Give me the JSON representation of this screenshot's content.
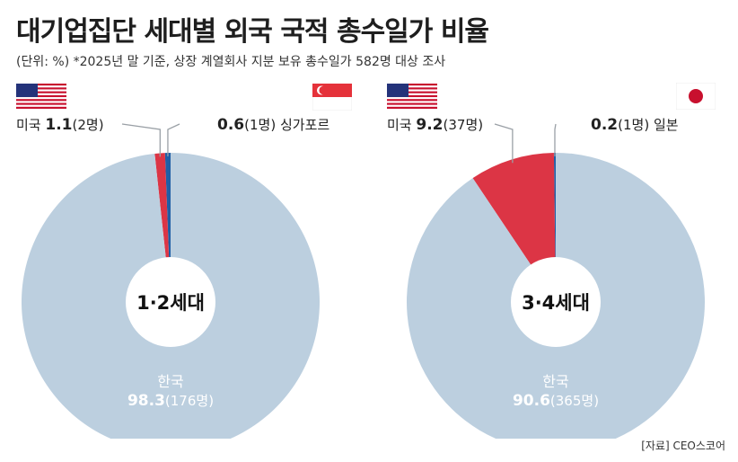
{
  "title": "대기업집단 세대별 외국 국적 총수일가 비율",
  "subtitle": "(단위: %) *2025년 말 기준, 상장 계열회사 지분 보유 총수일가 582명 대상 조사",
  "source": "[자료] CEO스코어",
  "colors": {
    "korea": "#bccfdf",
    "usa": "#dc3545",
    "other": "#1f5fa6",
    "leader_line": "#9aa0a6"
  },
  "chart_data": [
    {
      "type": "pie",
      "center_label": "1·2세대",
      "slices": [
        {
          "name": "한국",
          "value": 98.3,
          "count_label": "(176명)",
          "color": "#bccfdf"
        },
        {
          "name": "미국",
          "value": 1.1,
          "count_label": "(2명)",
          "color": "#dc3545"
        },
        {
          "name": "싱가포르",
          "value": 0.6,
          "count_label": "(1명)",
          "color": "#1f5fa6"
        }
      ],
      "flags": [
        "usa-flag",
        "singapore-flag"
      ]
    },
    {
      "type": "pie",
      "center_label": "3·4세대",
      "slices": [
        {
          "name": "한국",
          "value": 90.6,
          "count_label": "(365명)",
          "color": "#bccfdf"
        },
        {
          "name": "미국",
          "value": 9.2,
          "count_label": "(37명)",
          "color": "#dc3545"
        },
        {
          "name": "일본",
          "value": 0.2,
          "count_label": "(1명)",
          "color": "#1f5fa6"
        }
      ],
      "flags": [
        "usa-flag",
        "japan-flag"
      ]
    }
  ]
}
